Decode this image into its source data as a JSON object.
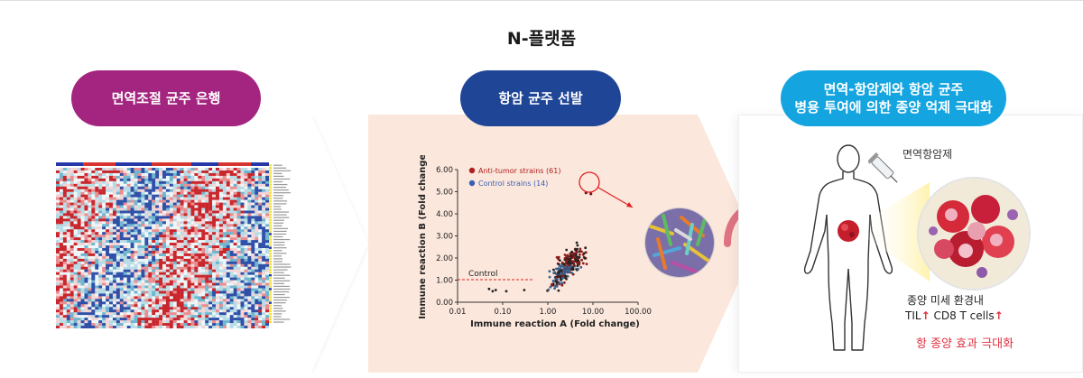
{
  "title": "N-플랫폼",
  "steps": [
    {
      "label": "면역조절 균주 은행"
    },
    {
      "label": "항암 균주 선발"
    },
    {
      "label_line1": "면역-항암제와 항암 균주",
      "label_line2": "병용 투여에 의한 종양 억제 극대화"
    }
  ],
  "colors": {
    "step1": "#a4257f",
    "step2": "#1f4597",
    "step3": "#14a4e0",
    "panel2_bg": "#fbe7dc",
    "accent_red": "#e0303f"
  },
  "chart_data": {
    "type": "scatter",
    "xlabel": "Immune reaction A (Fold change)",
    "ylabel": "Immune reaction B (Fold change)",
    "x_scale": "log",
    "xlim": [
      0.01,
      100
    ],
    "ylim": [
      0,
      6
    ],
    "x_ticks": [
      "0.01",
      "0.10",
      "1.00",
      "10.00",
      "100.00"
    ],
    "y_ticks": [
      "0.00",
      "1.00",
      "2.00",
      "3.00",
      "4.00",
      "5.00",
      "6.00"
    ],
    "legend_position": "top-left",
    "series": [
      {
        "name": "Anti-tumor strains (61)",
        "color": "#b0201e"
      },
      {
        "name": "Control strains (14)",
        "color": "#3a5fb4"
      }
    ],
    "reference_line": {
      "label": "Control",
      "y": 1.0,
      "color": "#e02020"
    },
    "highlight_points": [
      {
        "x": 7.0,
        "y": 4.95
      },
      {
        "x": 9.0,
        "y": 4.9
      }
    ]
  },
  "body": {
    "drug_label": "면역항암제",
    "line1": "종양 미세 환경내",
    "line2_a": "TIL",
    "line2_b": "CD8 T cells",
    "arrow_up": "↑",
    "line3": "항 종양 효과 극대화"
  }
}
